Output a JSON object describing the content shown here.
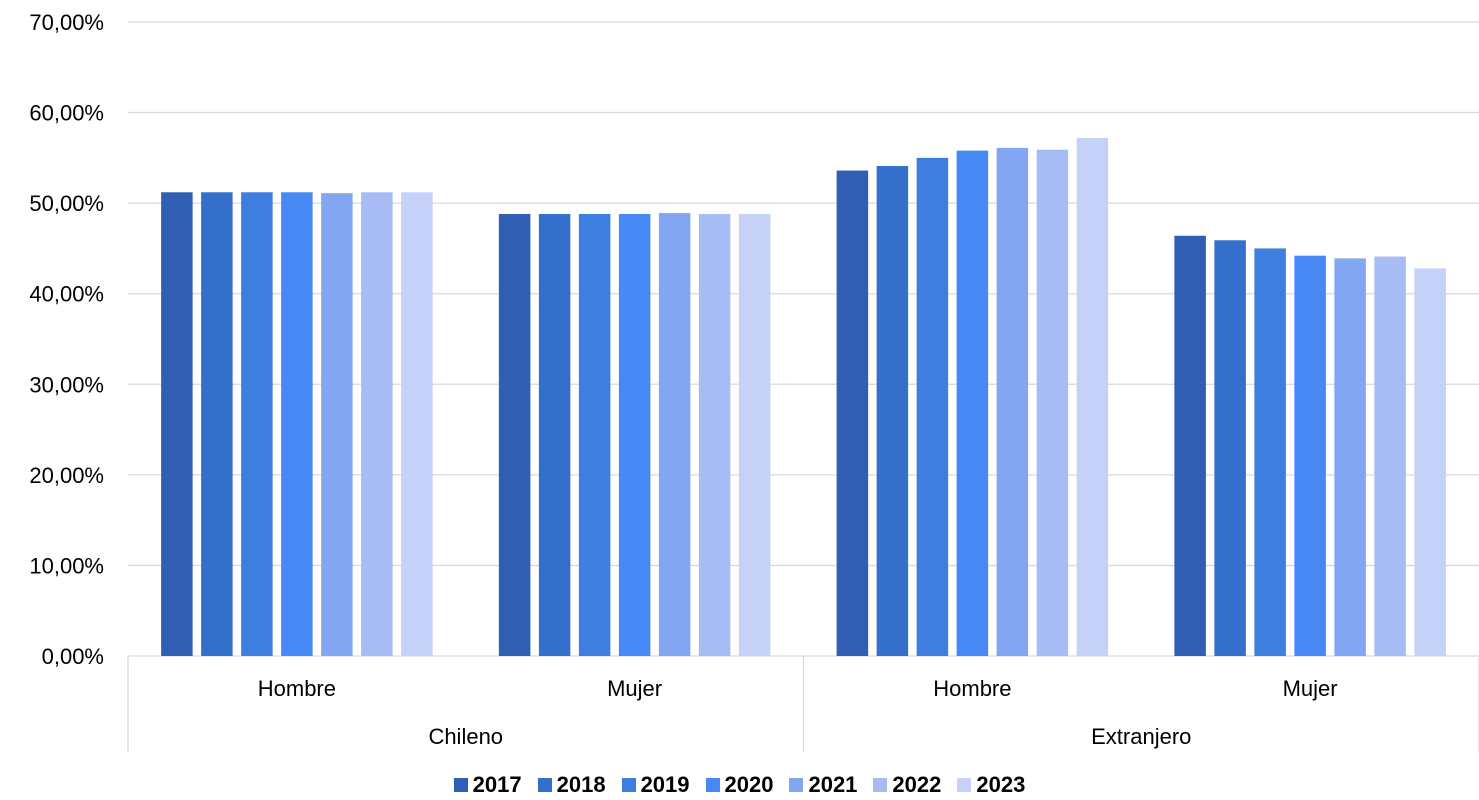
{
  "chart_data": {
    "type": "bar",
    "title": "",
    "xlabel": "",
    "ylabel": "",
    "ylim": [
      0,
      70
    ],
    "yticks": [
      "0,00%",
      "10,00%",
      "20,00%",
      "30,00%",
      "40,00%",
      "50,00%",
      "60,00%",
      "70,00%"
    ],
    "grid": true,
    "legend_position": "bottom",
    "groups": [
      {
        "label": "Chileno",
        "categories": [
          "Hombre",
          "Mujer"
        ]
      },
      {
        "label": "Extranjero",
        "categories": [
          "Hombre",
          "Mujer"
        ]
      }
    ],
    "categories": [
      "Chileno - Hombre",
      "Chileno - Mujer",
      "Extranjero - Hombre",
      "Extranjero - Mujer"
    ],
    "series": [
      {
        "name": "2017",
        "color": "#2f5eb3",
        "values": [
          51.2,
          48.8,
          53.6,
          46.4
        ]
      },
      {
        "name": "2018",
        "color": "#356fcc",
        "values": [
          51.2,
          48.8,
          54.1,
          45.9
        ]
      },
      {
        "name": "2019",
        "color": "#3d7ee0",
        "values": [
          51.2,
          48.8,
          55.0,
          45.0
        ]
      },
      {
        "name": "2020",
        "color": "#4689f5",
        "values": [
          51.2,
          48.8,
          55.8,
          44.2
        ]
      },
      {
        "name": "2021",
        "color": "#84a6f2",
        "values": [
          51.1,
          48.9,
          56.1,
          43.9
        ]
      },
      {
        "name": "2022",
        "color": "#a7bcf5",
        "values": [
          51.2,
          48.8,
          55.9,
          44.1
        ]
      },
      {
        "name": "2023",
        "color": "#c5d1f9",
        "values": [
          51.2,
          48.8,
          57.2,
          42.8
        ]
      }
    ]
  }
}
